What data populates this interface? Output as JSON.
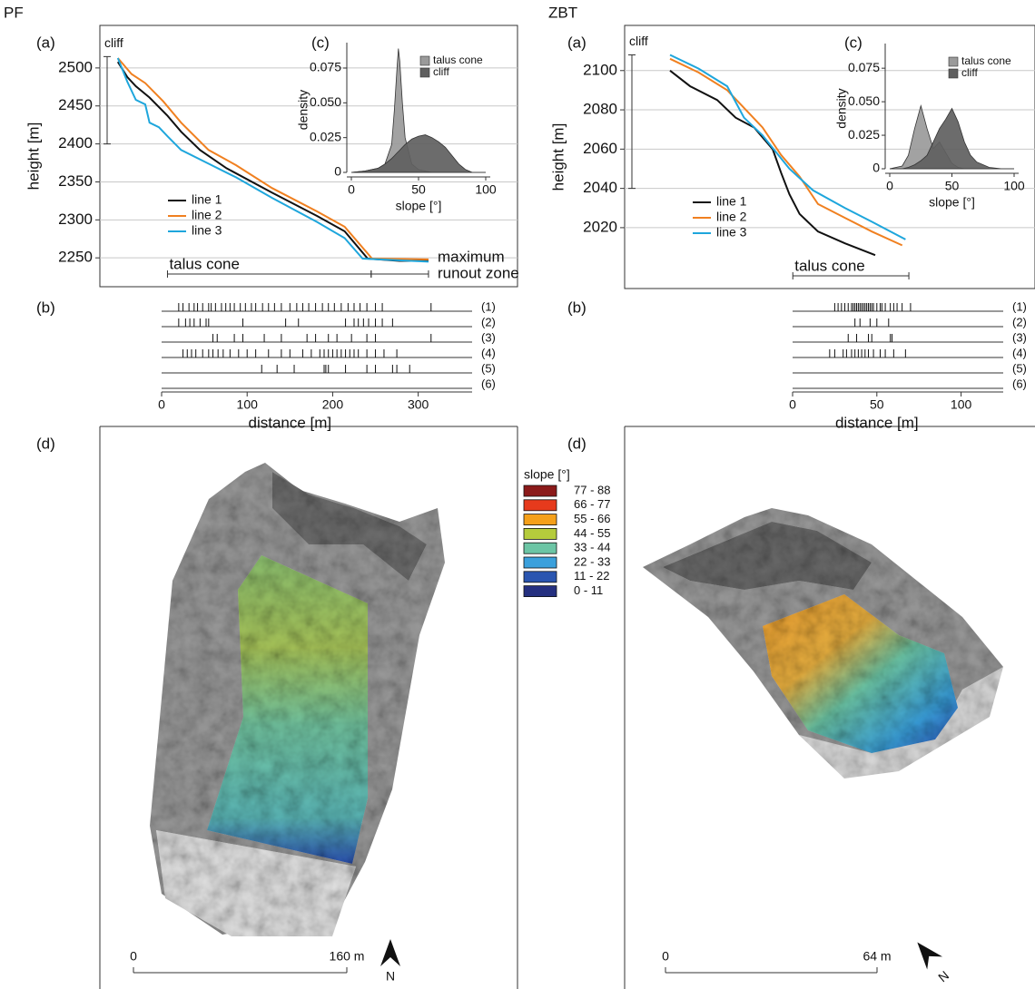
{
  "sites": [
    "PF",
    "ZBT"
  ],
  "chart_data": [
    {
      "type": "line",
      "panel": "(a)",
      "ylabel": "height [m]",
      "xlim": [
        -72,
        416
      ],
      "ylim": [
        2212,
        2556
      ],
      "yticks": [
        2250,
        2300,
        2350,
        2400,
        2450,
        2500
      ],
      "grid": true,
      "legend": "lower left",
      "series": [
        {
          "name": "line 1",
          "color": "#111111",
          "x": [
            -51,
            -40,
            -30,
            -14,
            7,
            23,
            45,
            76,
            129,
            182,
            214,
            241,
            278,
            312
          ],
          "values": [
            2508,
            2488,
            2476,
            2461,
            2437,
            2416,
            2392,
            2368,
            2336,
            2305,
            2285,
            2249,
            2246,
            2246
          ]
        },
        {
          "name": "line 2",
          "color": "#f08020",
          "x": [
            -51,
            -35,
            -19,
            2,
            23,
            55,
            87,
            129,
            182,
            214,
            246,
            312
          ],
          "values": [
            2513,
            2492,
            2480,
            2456,
            2428,
            2392,
            2372,
            2342,
            2311,
            2291,
            2249,
            2248
          ]
        },
        {
          "name": "line 3",
          "color": "#1ea6dc",
          "x": [
            -51,
            -40,
            -30,
            -19,
            -14,
            -3,
            7,
            23,
            55,
            87,
            129,
            182,
            214,
            235,
            312
          ],
          "values": [
            2513,
            2482,
            2458,
            2452,
            2428,
            2422,
            2410,
            2392,
            2374,
            2356,
            2329,
            2297,
            2276,
            2249,
            2245
          ]
        }
      ],
      "annotations": [
        {
          "text": "cliff",
          "axis": "y",
          "range": [
            2400,
            2515
          ]
        },
        {
          "text": "talus cone",
          "axis": "x",
          "range": [
            7,
            245
          ]
        },
        {
          "text": [
            "maximum",
            "runout zone"
          ],
          "axis": "x",
          "range": [
            245,
            312
          ]
        }
      ]
    },
    {
      "type": "area",
      "panel": "(c)",
      "xlabel": "slope [°]",
      "ylabel": "density",
      "xlim": [
        0,
        100
      ],
      "ylim": [
        0,
        0.09
      ],
      "xticks": [
        0,
        50,
        100
      ],
      "yticks": [
        0,
        0.025,
        {
          "value": 0.05,
          "label": "0.050"
        },
        0.075
      ],
      "legend": "upper right",
      "x": [
        0,
        10,
        20,
        25,
        30,
        32,
        34,
        35,
        36,
        38,
        40,
        45,
        50,
        55,
        60,
        65,
        70,
        75,
        80,
        85,
        90,
        100
      ],
      "series": [
        {
          "name": "talus cone",
          "color": "#9a9a9a",
          "values": [
            0,
            0.001,
            0.003,
            0.006,
            0.02,
            0.045,
            0.075,
            0.089,
            0.08,
            0.05,
            0.025,
            0.006,
            0.002,
            0.001,
            0,
            0,
            0,
            0,
            0,
            0,
            0,
            0
          ]
        },
        {
          "name": "cliff",
          "color": "#5f5f5f",
          "values": [
            0,
            0.001,
            0.003,
            0.006,
            0.01,
            0.012,
            0.014,
            0.015,
            0.016,
            0.018,
            0.02,
            0.024,
            0.026,
            0.027,
            0.025,
            0.022,
            0.018,
            0.012,
            0.006,
            0.002,
            0,
            0
          ]
        }
      ]
    },
    {
      "type": "event",
      "panel": "(b)",
      "xlabel": "distance [m]",
      "xlim": [
        0,
        363
      ],
      "xticks": [
        0,
        100,
        200,
        300
      ],
      "rows": [
        {
          "label": "(1)",
          "events": [
            20,
            25,
            32,
            38,
            42,
            48,
            55,
            58,
            63,
            70,
            75,
            80,
            85,
            92,
            98,
            105,
            110,
            118,
            125,
            132,
            140,
            150,
            158,
            165,
            172,
            180,
            188,
            195,
            202,
            210,
            218,
            225,
            232,
            240,
            250,
            258,
            315
          ]
        },
        {
          "label": "(2)",
          "events": [
            20,
            28,
            33,
            38,
            45,
            52,
            55,
            95,
            145,
            160,
            215,
            225,
            230,
            236,
            242,
            250,
            258,
            270
          ]
        },
        {
          "label": "(3)",
          "events": [
            60,
            65,
            85,
            95,
            120,
            140,
            170,
            180,
            195,
            205,
            222,
            240,
            250,
            315
          ]
        },
        {
          "label": "(4)",
          "events": [
            25,
            30,
            35,
            40,
            48,
            55,
            60,
            66,
            72,
            80,
            90,
            100,
            110,
            125,
            140,
            150,
            165,
            175,
            185,
            190,
            195,
            200,
            205,
            210,
            215,
            220,
            225,
            230,
            240,
            250,
            260,
            275
          ]
        },
        {
          "label": "(5)",
          "events": [
            117,
            135,
            155,
            190,
            192,
            195,
            215,
            240,
            250,
            270,
            275,
            290
          ]
        },
        {
          "label": "(6)",
          "events": []
        }
      ]
    },
    {
      "type": "line",
      "panel": "(a)",
      "ylabel": "height [m]",
      "xlim": [
        -100,
        144
      ],
      "ylim": [
        1989,
        2123
      ],
      "yticks": [
        2020,
        2040,
        2060,
        2080,
        2100
      ],
      "grid": true,
      "legend": "lower left",
      "series": [
        {
          "name": "line 1",
          "color": "#111111",
          "x": [
            -73,
            -61,
            -45,
            -34,
            -23,
            -12,
            -7,
            -2,
            4,
            15,
            31,
            49
          ],
          "values": [
            2100,
            2092,
            2085,
            2076,
            2071,
            2060,
            2048,
            2037,
            2027,
            2018,
            2012,
            2006
          ]
        },
        {
          "name": "line 2",
          "color": "#f08020",
          "x": [
            -73,
            -56,
            -39,
            -29,
            -18,
            -7,
            4,
            15,
            31,
            47,
            65
          ],
          "values": [
            2106,
            2099,
            2090,
            2081,
            2071,
            2057,
            2046,
            2032,
            2025,
            2018,
            2011
          ]
        },
        {
          "name": "line 3",
          "color": "#1ea6dc",
          "x": [
            -73,
            -56,
            -39,
            -29,
            -18,
            -2,
            12,
            31,
            47,
            67
          ],
          "values": [
            2108,
            2101,
            2092,
            2076,
            2067,
            2050,
            2039,
            2030,
            2023,
            2014
          ]
        }
      ],
      "annotations": [
        {
          "text": "cliff",
          "axis": "y",
          "range": [
            2040,
            2108
          ]
        },
        {
          "text": "talus cone",
          "axis": "x",
          "range": [
            0,
            69
          ]
        }
      ]
    },
    {
      "type": "area",
      "panel": "(c)",
      "xlabel": "slope [°]",
      "ylabel": "density",
      "xlim": [
        0,
        100
      ],
      "ylim": [
        0,
        0.09
      ],
      "xticks": [
        0,
        50,
        100
      ],
      "yticks": [
        0,
        0.025,
        {
          "value": 0.05,
          "label": "0.050"
        },
        0.075
      ],
      "legend": "upper right",
      "x": [
        0,
        10,
        15,
        20,
        25,
        30,
        35,
        40,
        45,
        50,
        55,
        60,
        65,
        70,
        80,
        90,
        100
      ],
      "series": [
        {
          "name": "talus cone",
          "color": "#9a9a9a",
          "values": [
            0,
            0.002,
            0.01,
            0.03,
            0.047,
            0.03,
            0.015,
            0.02,
            0.012,
            0.004,
            0.001,
            0,
            0,
            0,
            0,
            0,
            0
          ]
        },
        {
          "name": "cliff",
          "color": "#5f5f5f",
          "values": [
            0,
            0,
            0.001,
            0.003,
            0.006,
            0.01,
            0.02,
            0.03,
            0.037,
            0.045,
            0.035,
            0.02,
            0.01,
            0.005,
            0.001,
            0,
            0
          ]
        }
      ]
    },
    {
      "type": "event",
      "panel": "(b)",
      "xlabel": "distance [m]",
      "xlim": [
        0,
        125
      ],
      "xticks": [
        0,
        50,
        100
      ],
      "rows": [
        {
          "label": "(1)",
          "events": [
            25,
            27,
            29,
            31,
            33,
            35,
            36,
            37,
            38,
            39,
            40,
            41,
            42,
            43,
            44,
            45,
            46,
            47,
            48,
            50,
            52,
            53,
            55,
            58,
            60,
            62,
            65,
            70
          ]
        },
        {
          "label": "(2)",
          "events": [
            37,
            40,
            46,
            50,
            57
          ]
        },
        {
          "label": "(3)",
          "events": [
            33,
            38,
            45,
            47,
            58,
            59
          ]
        },
        {
          "label": "(4)",
          "events": [
            22,
            25,
            30,
            32,
            35,
            37,
            39,
            41,
            43,
            45,
            48,
            52,
            55,
            60,
            67
          ]
        },
        {
          "label": "(5)",
          "events": []
        },
        {
          "label": "(6)",
          "events": []
        }
      ]
    }
  ],
  "maps": [
    {
      "panel": "(d)",
      "legend_title": "slope [°]",
      "legend": [
        {
          "label": "77 - 88",
          "color": "#8b1a1a"
        },
        {
          "label": "66 - 77",
          "color": "#e63a1c"
        },
        {
          "label": "55 - 66",
          "color": "#f5a01a"
        },
        {
          "label": "44 - 55",
          "color": "#b5cc3c"
        },
        {
          "label": "33 - 44",
          "color": "#6cc5a5"
        },
        {
          "label": "22 - 33",
          "color": "#3aa0dc"
        },
        {
          "label": "11 - 22",
          "color": "#2a55b0"
        },
        {
          "label": "0 - 11",
          "color": "#253080"
        }
      ],
      "scale": [
        "0",
        "160 m"
      ],
      "north": "N"
    },
    {
      "panel": "(d)",
      "scale": [
        "0",
        "64 m"
      ],
      "north": "N"
    }
  ]
}
